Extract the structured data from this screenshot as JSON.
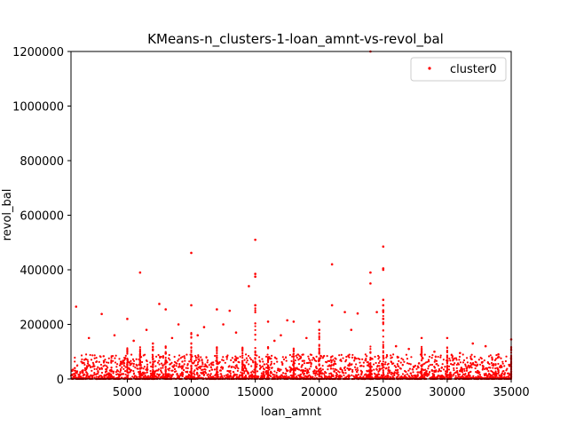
{
  "chart_data": {
    "type": "scatter",
    "title": "KMeans-n_clusters-1-loan_amnt-vs-revol_bal",
    "xlabel": "loan_amnt",
    "ylabel": "revol_bal",
    "xlim": [
      600,
      35000
    ],
    "ylim": [
      0,
      1200000
    ],
    "xticks": [
      5000,
      10000,
      15000,
      20000,
      25000,
      30000,
      35000
    ],
    "xtick_labels": [
      "5000",
      "10000",
      "15000",
      "20000",
      "25000",
      "30000",
      "35000"
    ],
    "yticks": [
      0,
      200000,
      400000,
      600000,
      800000,
      1000000,
      1200000
    ],
    "ytick_labels": [
      "0",
      "200000",
      "400000",
      "600000",
      "800000",
      "1000000",
      "1200000"
    ],
    "grid": false,
    "legend_position": "top-right",
    "series": [
      {
        "name": "cluster0",
        "color": "#ff0000",
        "points": [
          [
            1000,
            265000
          ],
          [
            3000,
            238000
          ],
          [
            5000,
            220000
          ],
          [
            6000,
            390000
          ],
          [
            7500,
            275000
          ],
          [
            8000,
            255000
          ],
          [
            10000,
            462000
          ],
          [
            10000,
            270000
          ],
          [
            12000,
            255000
          ],
          [
            13000,
            250000
          ],
          [
            14500,
            340000
          ],
          [
            15000,
            510000
          ],
          [
            15000,
            385000
          ],
          [
            15000,
            375000
          ],
          [
            15000,
            270000
          ],
          [
            16000,
            210000
          ],
          [
            17500,
            215000
          ],
          [
            18000,
            210000
          ],
          [
            20000,
            210000
          ],
          [
            21000,
            420000
          ],
          [
            21000,
            270000
          ],
          [
            22000,
            245000
          ],
          [
            23000,
            240000
          ],
          [
            24000,
            390000
          ],
          [
            24000,
            350000
          ],
          [
            24000,
            1200000
          ],
          [
            24500,
            245000
          ],
          [
            25000,
            485000
          ],
          [
            25000,
            405000
          ],
          [
            25000,
            400000
          ],
          [
            25000,
            290000
          ],
          [
            25000,
            270000
          ],
          [
            25000,
            250000
          ],
          [
            25000,
            220000
          ],
          [
            28000,
            150000
          ],
          [
            30000,
            150000
          ],
          [
            32000,
            130000
          ],
          [
            33000,
            120000
          ],
          [
            35000,
            145000
          ],
          [
            2000,
            150000
          ],
          [
            4000,
            160000
          ],
          [
            6500,
            180000
          ],
          [
            9000,
            200000
          ],
          [
            11000,
            190000
          ],
          [
            13500,
            170000
          ],
          [
            17000,
            160000
          ],
          [
            19000,
            150000
          ],
          [
            22500,
            180000
          ],
          [
            26000,
            120000
          ],
          [
            27000,
            110000
          ],
          [
            29000,
            100000
          ],
          [
            31000,
            95000
          ],
          [
            34000,
            90000
          ],
          [
            12500,
            200000
          ],
          [
            20000,
            180000
          ],
          [
            5500,
            140000
          ],
          [
            7000,
            130000
          ],
          [
            8500,
            150000
          ],
          [
            10500,
            160000
          ],
          [
            16500,
            140000
          ]
        ]
      }
    ]
  }
}
